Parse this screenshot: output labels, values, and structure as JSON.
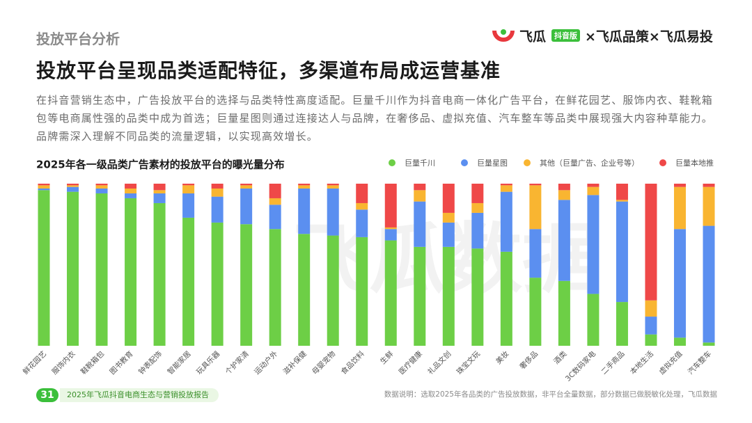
{
  "header": {
    "section": "投放平台分析",
    "title": "投放平台呈现品类适配特征，多渠道布局成运营基准",
    "logo_name": "飞瓜",
    "logo_badge": "抖音版",
    "logo_rest": "×飞瓜品策×飞瓜易投"
  },
  "body": {
    "paragraph": "在抖音营销生态中，广告投放平台的选择与品类特性高度适配。巨量千川作为抖音电商一体化广告平台，在鲜花园艺、服饰内衣、鞋靴箱包等电商属性强的品类中成为首选；巨量星图则通过连接达人与品牌，在奢侈品、虚拟充值、汽车整车等品类中展现强大内容种草能力。品牌需深入理解不同品类的流量逻辑，以实现高效增长。"
  },
  "chart_data": {
    "type": "bar",
    "stacked": true,
    "title": "2025年各一级品类广告素材的投放平台的曝光量分布",
    "watermark": "飞瓜数据",
    "categories": [
      "鲜花园艺",
      "服饰内衣",
      "鞋靴箱包",
      "图书教育",
      "钟表配饰",
      "智能家居",
      "玩具乐器",
      "个护家清",
      "运动户外",
      "滋补保健",
      "母婴宠物",
      "食品饮料",
      "生鲜",
      "医疗健康",
      "礼品文创",
      "珠宝文玩",
      "美妆",
      "奢侈品",
      "酒类",
      "3C数码家电",
      "二手商品",
      "本地生活",
      "虚拟充值",
      "汽车整车"
    ],
    "series": [
      {
        "name": "巨量千川",
        "color": "#6dcf46",
        "values": [
          96,
          95,
          94,
          91,
          88,
          79,
          76,
          75,
          72,
          69,
          68,
          67,
          65,
          61,
          61,
          60,
          58,
          42,
          40,
          32,
          27,
          7,
          5,
          2
        ]
      },
      {
        "name": "巨量星图",
        "color": "#5b8ff0",
        "values": [
          1,
          3,
          3,
          3,
          6,
          15,
          16,
          22,
          15,
          28,
          29,
          17,
          7,
          28,
          15,
          22,
          37,
          30,
          50,
          61,
          62,
          11,
          67,
          72
        ]
      },
      {
        "name": "其他（巨量广告、企业号等）",
        "color": "#f9b531",
        "values": [
          2,
          1,
          2,
          3,
          2,
          5,
          5,
          2,
          4,
          2,
          2,
          4,
          1,
          7,
          6,
          6,
          4,
          27,
          6,
          5,
          1,
          10,
          26,
          24
        ]
      },
      {
        "name": "巨量本地推",
        "color": "#ef4848",
        "values": [
          1,
          1,
          1,
          3,
          4,
          1,
          3,
          1,
          9,
          1,
          1,
          12,
          27,
          4,
          18,
          12,
          1,
          1,
          4,
          2,
          10,
          72,
          2,
          2
        ]
      }
    ],
    "ylim": [
      0,
      100
    ],
    "legend": "top-right"
  },
  "footer": {
    "page": "31",
    "report": "2025年飞瓜抖音电商生态与营销投放报告",
    "note": "数据说明：选取2025年各品类的广告投放数据，非平台全量数据，部分数据已做脱敏化处理，飞瓜数据"
  }
}
